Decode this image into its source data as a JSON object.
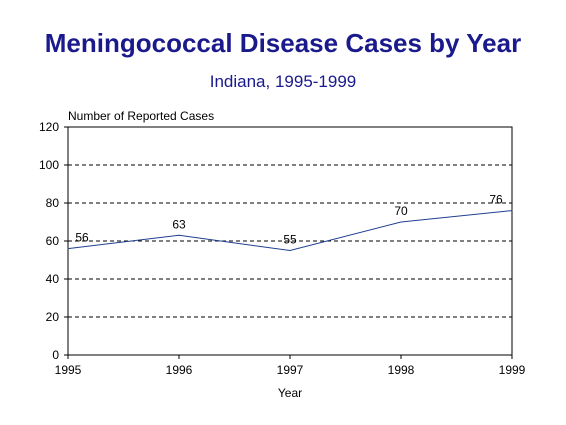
{
  "chart_data": {
    "type": "line",
    "title": "Meningococcal Disease Cases by Year",
    "subtitle": "Indiana, 1995-1999",
    "xlabel": "Year",
    "ylabel": "Number of Reported Cases",
    "x": [
      "1995",
      "1996",
      "1997",
      "1998",
      "1999"
    ],
    "series": [
      {
        "values": [
          56,
          63,
          55,
          70,
          76
        ],
        "color": "#1f3f8f"
      }
    ],
    "ylim": [
      0,
      120
    ],
    "yticks": [
      "0",
      "20",
      "40",
      "60",
      "80",
      "100",
      "120"
    ],
    "grid": true,
    "data_labels": [
      "56",
      "63",
      "55",
      "70",
      "76"
    ]
  }
}
